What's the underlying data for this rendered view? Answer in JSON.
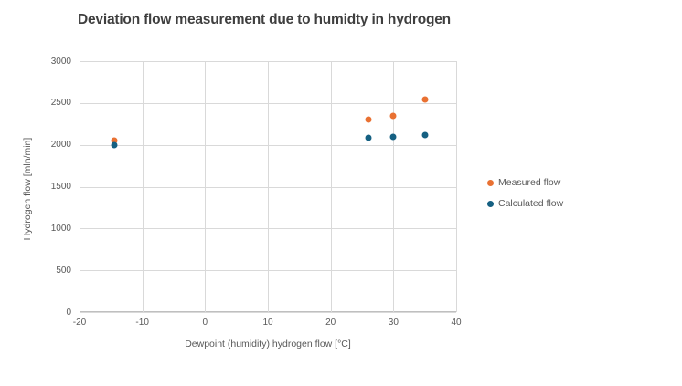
{
  "chart_data": {
    "type": "scatter",
    "title": "Deviation flow measurement due to humidty in hydrogen",
    "xlabel": "Dewpoint (humidity) hydrogen flow [°C]",
    "ylabel": "Hydrogen flow [mln/min]",
    "xlim": [
      -20,
      40
    ],
    "ylim": [
      0,
      3000
    ],
    "x_ticks": [
      -20,
      -10,
      0,
      10,
      20,
      30,
      40
    ],
    "y_ticks": [
      0,
      500,
      1000,
      1500,
      2000,
      2500,
      3000
    ],
    "grid": true,
    "legend_position": "right",
    "series": [
      {
        "name": "Measured flow",
        "color": "#E97132",
        "points": [
          {
            "x": -14.5,
            "y": 2050
          },
          {
            "x": 26,
            "y": 2300
          },
          {
            "x": 30,
            "y": 2350
          },
          {
            "x": 35,
            "y": 2540
          }
        ]
      },
      {
        "name": "Calculated flow",
        "color": "#156082",
        "points": [
          {
            "x": -14.5,
            "y": 2000
          },
          {
            "x": 26,
            "y": 2080
          },
          {
            "x": 30,
            "y": 2090
          },
          {
            "x": 35,
            "y": 2120
          }
        ]
      }
    ],
    "colors": {
      "title_text": "#3F3F3F",
      "axis_text": "#595959",
      "gridline": "#D9D9D9",
      "axis_line": "#BFBFBF",
      "background": "#FFFFFF"
    }
  }
}
